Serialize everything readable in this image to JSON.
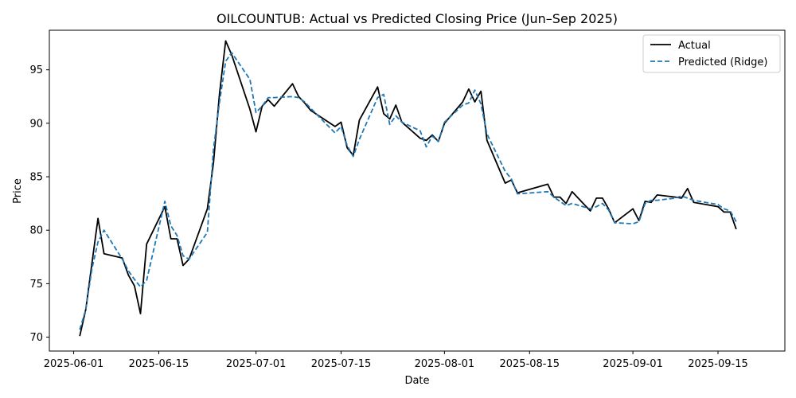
{
  "chart_data": {
    "type": "line",
    "title": "OILCOUNTUB: Actual vs Predicted Closing Price (Jun–Sep 2025)",
    "xlabel": "Date",
    "ylabel": "Price",
    "xlim": [
      "2025-05-28",
      "2025-09-26"
    ],
    "ylim": [
      68.7,
      98.7
    ],
    "x_ticks": [
      "2025-06-01",
      "2025-06-15",
      "2025-07-01",
      "2025-07-15",
      "2025-08-01",
      "2025-08-15",
      "2025-09-01",
      "2025-09-15"
    ],
    "y_ticks": [
      70,
      75,
      80,
      85,
      90,
      95
    ],
    "grid": false,
    "legend": "top-right",
    "colors": {
      "actual": "#000000",
      "predicted": "#1f77b4"
    },
    "series": [
      {
        "name": "Actual",
        "style": "solid",
        "x": [
          "2025-06-02",
          "2025-06-03",
          "2025-06-04",
          "2025-06-05",
          "2025-06-06",
          "2025-06-09",
          "2025-06-10",
          "2025-06-11",
          "2025-06-12",
          "2025-06-13",
          "2025-06-16",
          "2025-06-17",
          "2025-06-18",
          "2025-06-19",
          "2025-06-20",
          "2025-06-23",
          "2025-06-24",
          "2025-06-25",
          "2025-06-26",
          "2025-06-27",
          "2025-06-30",
          "2025-07-01",
          "2025-07-02",
          "2025-07-03",
          "2025-07-04",
          "2025-07-07",
          "2025-07-08",
          "2025-07-09",
          "2025-07-10",
          "2025-07-14",
          "2025-07-15",
          "2025-07-16",
          "2025-07-17",
          "2025-07-18",
          "2025-07-21",
          "2025-07-22",
          "2025-07-23",
          "2025-07-24",
          "2025-07-25",
          "2025-07-28",
          "2025-07-29",
          "2025-07-30",
          "2025-07-31",
          "2025-08-01",
          "2025-08-04",
          "2025-08-05",
          "2025-08-06",
          "2025-08-07",
          "2025-08-08",
          "2025-08-11",
          "2025-08-12",
          "2025-08-13",
          "2025-08-18",
          "2025-08-19",
          "2025-08-20",
          "2025-08-21",
          "2025-08-22",
          "2025-08-25",
          "2025-08-26",
          "2025-08-27",
          "2025-08-28",
          "2025-08-29",
          "2025-09-01",
          "2025-09-02",
          "2025-09-03",
          "2025-09-04",
          "2025-09-05",
          "2025-09-08",
          "2025-09-09",
          "2025-09-10",
          "2025-09-11",
          "2025-09-15",
          "2025-09-16",
          "2025-09-17",
          "2025-09-18"
        ],
        "values": [
          70.1,
          72.6,
          76.9,
          81.1,
          77.8,
          77.4,
          75.8,
          74.8,
          72.2,
          78.7,
          82.2,
          79.2,
          79.2,
          76.7,
          77.3,
          82.0,
          86.3,
          92.8,
          97.7,
          96.4,
          91.3,
          89.2,
          91.6,
          92.2,
          91.6,
          93.7,
          92.5,
          91.9,
          91.2,
          89.7,
          90.1,
          87.7,
          87.0,
          90.3,
          93.4,
          90.9,
          90.4,
          91.7,
          90.1,
          88.6,
          88.4,
          88.9,
          88.3,
          90.0,
          92.0,
          93.2,
          92.0,
          93.0,
          88.4,
          84.4,
          84.7,
          83.5,
          84.3,
          83.1,
          83.1,
          82.5,
          83.6,
          81.8,
          83.0,
          83.0,
          82.0,
          80.7,
          82.0,
          80.9,
          82.7,
          82.6,
          83.3,
          83.1,
          83.0,
          83.9,
          82.6,
          82.2,
          81.7,
          81.7,
          80.1
        ]
      },
      {
        "name": "Predicted (Ridge)",
        "style": "dashed",
        "x": [
          "2025-06-02",
          "2025-06-03",
          "2025-06-04",
          "2025-06-05",
          "2025-06-06",
          "2025-06-09",
          "2025-06-10",
          "2025-06-11",
          "2025-06-12",
          "2025-06-13",
          "2025-06-16",
          "2025-06-17",
          "2025-06-18",
          "2025-06-19",
          "2025-06-20",
          "2025-06-23",
          "2025-06-24",
          "2025-06-25",
          "2025-06-26",
          "2025-06-27",
          "2025-06-30",
          "2025-07-01",
          "2025-07-02",
          "2025-07-03",
          "2025-07-04",
          "2025-07-07",
          "2025-07-08",
          "2025-07-09",
          "2025-07-10",
          "2025-07-14",
          "2025-07-15",
          "2025-07-16",
          "2025-07-17",
          "2025-07-18",
          "2025-07-21",
          "2025-07-22",
          "2025-07-23",
          "2025-07-24",
          "2025-07-25",
          "2025-07-28",
          "2025-07-29",
          "2025-07-30",
          "2025-07-31",
          "2025-08-01",
          "2025-08-04",
          "2025-08-05",
          "2025-08-06",
          "2025-08-07",
          "2025-08-08",
          "2025-08-11",
          "2025-08-12",
          "2025-08-13",
          "2025-08-18",
          "2025-08-19",
          "2025-08-20",
          "2025-08-21",
          "2025-08-22",
          "2025-08-25",
          "2025-08-26",
          "2025-08-27",
          "2025-08-28",
          "2025-08-29",
          "2025-09-01",
          "2025-09-02",
          "2025-09-03",
          "2025-09-04",
          "2025-09-05",
          "2025-09-08",
          "2025-09-09",
          "2025-09-10",
          "2025-09-11",
          "2025-09-15",
          "2025-09-16",
          "2025-09-17",
          "2025-09-18"
        ],
        "values": [
          70.7,
          72.6,
          76.4,
          78.9,
          80.0,
          77.3,
          76.2,
          75.4,
          74.7,
          75.3,
          82.7,
          80.4,
          79.5,
          77.6,
          77.3,
          79.8,
          87.6,
          92.0,
          95.8,
          96.6,
          94.1,
          91.0,
          91.6,
          92.4,
          92.4,
          92.5,
          92.4,
          92.0,
          91.4,
          89.1,
          89.7,
          87.9,
          86.9,
          88.5,
          92.4,
          92.7,
          89.9,
          90.7,
          90.1,
          89.3,
          87.8,
          88.8,
          88.3,
          90.1,
          91.7,
          91.9,
          93.1,
          91.8,
          89.0,
          85.5,
          84.8,
          83.4,
          83.6,
          83.1,
          82.7,
          82.3,
          82.5,
          82.0,
          82.2,
          82.5,
          81.9,
          80.7,
          80.6,
          80.8,
          82.5,
          82.8,
          82.8,
          83.0,
          83.2,
          83.0,
          82.8,
          82.4,
          82.0,
          81.8,
          80.8
        ]
      }
    ]
  }
}
